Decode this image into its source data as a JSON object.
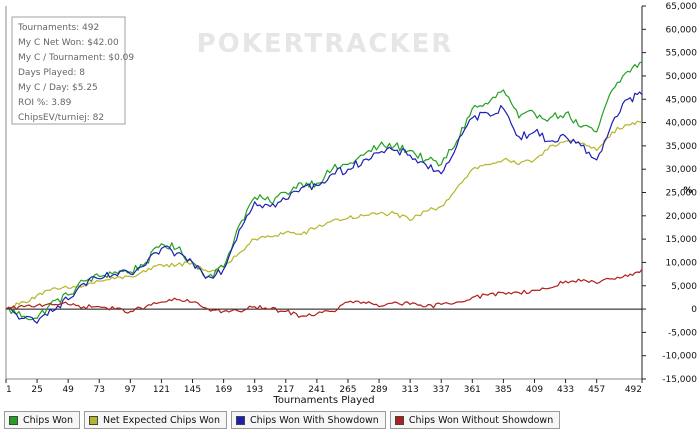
{
  "watermark": "POKERTRACKER",
  "stats": [
    {
      "label": "Tournaments",
      "value": "492"
    },
    {
      "label": "My C Net Won",
      "value": "$42.00"
    },
    {
      "label": "My C / Tournament",
      "value": "$0.09"
    },
    {
      "label": "Days Played",
      "value": "8"
    },
    {
      "label": "My C / Day",
      "value": "$5.25"
    },
    {
      "label": "ROI %",
      "value": "3.89"
    },
    {
      "label": "ChipsEV/turniej",
      "value": "82"
    }
  ],
  "chart_data": {
    "type": "line",
    "xlabel": "Tournaments Played",
    "ylabel": "%",
    "xlim": [
      1,
      492
    ],
    "ylim": [
      -15000,
      65000
    ],
    "x_ticks": [
      1,
      25,
      49,
      73,
      97,
      121,
      145,
      169,
      193,
      217,
      241,
      265,
      289,
      313,
      337,
      361,
      385,
      409,
      433,
      457,
      492
    ],
    "y_ticks": [
      -15000,
      -10000,
      -5000,
      0,
      5000,
      10000,
      15000,
      20000,
      25000,
      30000,
      35000,
      40000,
      45000,
      50000,
      55000,
      60000,
      65000
    ],
    "y_tick_labels": [
      "-15,000",
      "-10,000",
      "-5,000",
      "0",
      "5,000",
      "10,000",
      "15,000",
      "20,000",
      "25,000",
      "30,000",
      "35,000",
      "40,000",
      "45,000",
      "50,000",
      "55,000",
      "60,000",
      "65,000"
    ],
    "grid": "zero line only",
    "legend_position": "bottom",
    "x": [
      1,
      15,
      25,
      35,
      49,
      61,
      73,
      85,
      97,
      109,
      121,
      133,
      145,
      157,
      169,
      181,
      193,
      205,
      217,
      229,
      241,
      253,
      265,
      277,
      289,
      301,
      313,
      325,
      337,
      349,
      361,
      373,
      385,
      397,
      409,
      421,
      433,
      445,
      457,
      469,
      481,
      492
    ],
    "series": [
      {
        "name": "Chips Won",
        "color": "#22a022",
        "values": [
          0,
          -1500,
          -2000,
          1000,
          3000,
          6000,
          7000,
          8000,
          8000,
          10000,
          14000,
          13000,
          10000,
          7000,
          9000,
          18000,
          24000,
          23000,
          25000,
          27000,
          27000,
          30000,
          31000,
          33000,
          35000,
          35000,
          34000,
          32000,
          31000,
          36000,
          43000,
          44000,
          47000,
          41000,
          42000,
          41000,
          42000,
          39000,
          38000,
          47000,
          51000,
          53000
        ]
      },
      {
        "name": "Net Expected Chips Won",
        "color": "#b5b52a",
        "values": [
          0,
          1500,
          3000,
          4000,
          4500,
          5000,
          6000,
          6500,
          7000,
          8000,
          9500,
          9500,
          10000,
          8000,
          9000,
          12000,
          15000,
          15500,
          16500,
          16000,
          17500,
          19000,
          19500,
          20000,
          20500,
          20500,
          19000,
          21000,
          22000,
          26000,
          30000,
          31000,
          32000,
          31000,
          32000,
          35000,
          36000,
          35500,
          34000,
          38000,
          39500,
          40000
        ]
      },
      {
        "name": "Chips Won With Showdown",
        "color": "#1e1eb4",
        "values": [
          0,
          -2000,
          -3000,
          0,
          2000,
          5500,
          6500,
          7500,
          7500,
          9500,
          13000,
          12000,
          10000,
          7000,
          8500,
          17000,
          23000,
          22000,
          23500,
          26000,
          26500,
          29000,
          30000,
          32000,
          33500,
          34000,
          33000,
          31000,
          29000,
          35000,
          41000,
          42000,
          43000,
          37000,
          38000,
          36000,
          37000,
          35000,
          32000,
          40000,
          45000,
          46000
        ]
      },
      {
        "name": "Chips Won Without Showdown",
        "color": "#b01e1e",
        "values": [
          0,
          500,
          800,
          1200,
          1000,
          500,
          500,
          0,
          -500,
          500,
          1500,
          2000,
          1500,
          0,
          -500,
          -500,
          500,
          0,
          -500,
          -1500,
          -1000,
          -500,
          1500,
          1500,
          500,
          1500,
          1000,
          500,
          1000,
          1500,
          2500,
          3000,
          3500,
          3500,
          4000,
          4500,
          6000,
          6000,
          5500,
          6500,
          7000,
          8500
        ]
      }
    ]
  }
}
